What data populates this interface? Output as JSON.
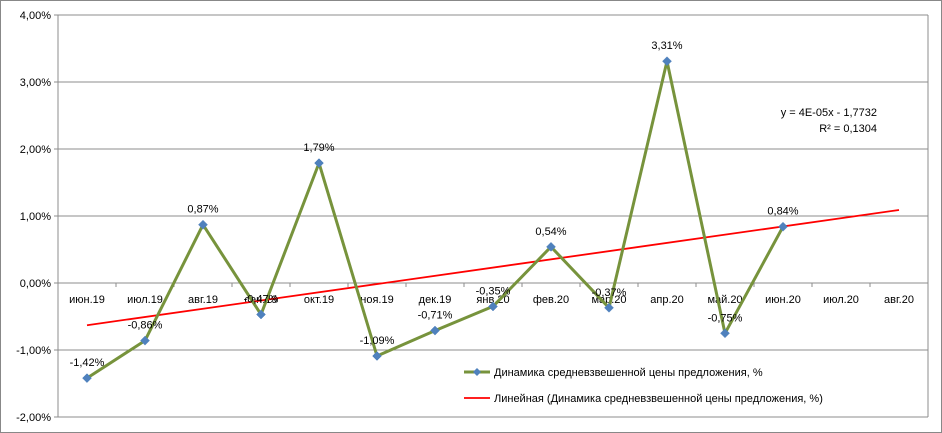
{
  "chart_data": {
    "type": "line",
    "categories": [
      "июн.19",
      "июл.19",
      "авг.19",
      "сен.19",
      "окт.19",
      "ноя.19",
      "дек.19",
      "янв.20",
      "фев.20",
      "мар.20",
      "апр.20",
      "май.20",
      "июн.20",
      "июл.20",
      "авг.20"
    ],
    "series": [
      {
        "name": "Динамика средневзвешенной  цены предложения,  %",
        "values": [
          -1.42,
          -0.86,
          0.87,
          -0.47,
          1.79,
          -1.09,
          -0.71,
          -0.35,
          0.54,
          -0.37,
          3.31,
          -0.75,
          0.84,
          null,
          null
        ],
        "labels": [
          "-1,42%",
          "-0,86%",
          "0,87%",
          "-0,47%",
          "1,79%",
          "-1,09%",
          "-0,71%",
          "-0,35%",
          "0,54%",
          "-0,37%",
          "3,31%",
          "-0,75%",
          "0,84%",
          "",
          ""
        ],
        "color": "#77933c",
        "marker_color": "#4f81bd"
      },
      {
        "name": "Линейная (Динамика средневзвешенной  цены предложения,  %)",
        "type": "trendline",
        "start": -0.63,
        "end": 1.09,
        "color": "#ff0000"
      }
    ],
    "trendline_equation": [
      "y = 4E-05x - 1,7732",
      "R² = 0,1304"
    ],
    "y_ticks": [
      4,
      3,
      2,
      1,
      0,
      -1,
      -2
    ],
    "y_tick_labels": [
      "4,00%",
      "3,00%",
      "2,00%",
      "1,00%",
      "0,00%",
      "-1,00%",
      "-2,00%"
    ],
    "ylim": [
      -2,
      4
    ],
    "grid": true,
    "legend_position": "bottom-right"
  }
}
